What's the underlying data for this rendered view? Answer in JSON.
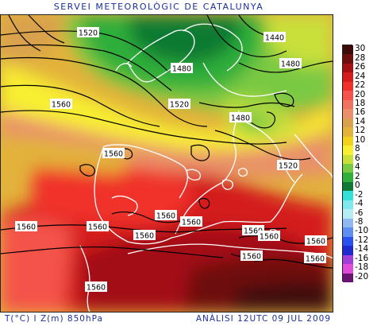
{
  "header": {
    "title": "SERVEI METEOROLÒGIC DE CATALUNYA"
  },
  "footer": {
    "left": "T(°C) I Z(m) 850hPa",
    "right": "ANÀLISI 12UTC 09 JUL 2009"
  },
  "legend": {
    "items": [
      {
        "label": "30",
        "color": "#3d0a0a"
      },
      {
        "label": "28",
        "color": "#6e0d0d"
      },
      {
        "label": "26",
        "color": "#a30f12"
      },
      {
        "label": "24",
        "color": "#d41c1c"
      },
      {
        "label": "22",
        "color": "#f0312a"
      },
      {
        "label": "20",
        "color": "#f4524a"
      },
      {
        "label": "18",
        "color": "#f07360"
      },
      {
        "label": "16",
        "color": "#e9906a"
      },
      {
        "label": "14",
        "color": "#d9a14e"
      },
      {
        "label": "12",
        "color": "#e2b23b"
      },
      {
        "label": "10",
        "color": "#f0d11b"
      },
      {
        "label": "8",
        "color": "#f8ee33"
      },
      {
        "label": "6",
        "color": "#c9e03a"
      },
      {
        "label": "4",
        "color": "#7ac943"
      },
      {
        "label": "2",
        "color": "#2fae3b"
      },
      {
        "label": "0",
        "color": "#0f7a33"
      },
      {
        "label": "-2",
        "color": "#33e1d8"
      },
      {
        "label": "-4",
        "color": "#7fe9ee"
      },
      {
        "label": "-6",
        "color": "#b6ecf4"
      },
      {
        "label": "-8",
        "color": "#8fb9f0"
      },
      {
        "label": "-10",
        "color": "#5e8ff0"
      },
      {
        "label": "-12",
        "color": "#2a50f0"
      },
      {
        "label": "-14",
        "color": "#1d2ad0"
      },
      {
        "label": "-16",
        "color": "#a23fd6"
      },
      {
        "label": "-18",
        "color": "#e04bd9"
      },
      {
        "label": "-20",
        "color": "#6a1472"
      }
    ]
  },
  "map": {
    "isohypse_labels": [
      {
        "text": "1520"
      },
      {
        "text": "1440"
      },
      {
        "text": "1480"
      },
      {
        "text": "1480"
      },
      {
        "text": "1560"
      },
      {
        "text": "1520"
      },
      {
        "text": "1480"
      },
      {
        "text": "1560"
      },
      {
        "text": "1520"
      },
      {
        "text": "1560"
      },
      {
        "text": "1560"
      },
      {
        "text": "1560"
      },
      {
        "text": "1560"
      },
      {
        "text": "1560"
      },
      {
        "text": "1560"
      },
      {
        "text": "1560"
      },
      {
        "text": "1560"
      },
      {
        "text": "1560"
      },
      {
        "text": "1560"
      },
      {
        "text": "1560"
      }
    ]
  }
}
